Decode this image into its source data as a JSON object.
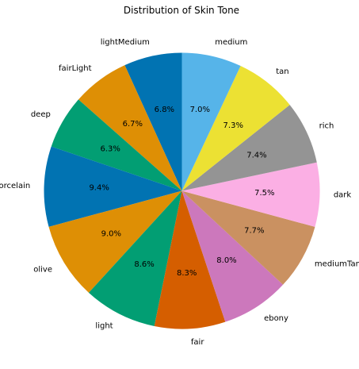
{
  "chart_data": {
    "type": "pie",
    "title": "Distribution of Skin Tone",
    "start_angle_deg": 90,
    "direction": "counterclockwise",
    "categories": [
      "lightMedium",
      "fairLight",
      "deep",
      "porcelain",
      "olive",
      "light",
      "fair",
      "ebony",
      "mediumTan",
      "dark",
      "rich",
      "tan",
      "medium"
    ],
    "values": [
      6.8,
      6.7,
      6.3,
      9.4,
      9.0,
      8.6,
      8.3,
      8.0,
      7.7,
      7.5,
      7.4,
      7.3,
      7.0
    ],
    "value_labels": [
      "6.8%",
      "6.7%",
      "6.3%",
      "9.4%",
      "9.0%",
      "8.6%",
      "8.3%",
      "8.0%",
      "7.7%",
      "7.5%",
      "7.4%",
      "7.3%",
      "7.0%"
    ],
    "colors": [
      "#0173b2",
      "#de8f05",
      "#029e73",
      "#0173b2",
      "#de8f05",
      "#029e73",
      "#d55e00",
      "#cc78bc",
      "#ca9161",
      "#fbafe4",
      "#949494",
      "#ece133",
      "#56b4e9"
    ]
  }
}
